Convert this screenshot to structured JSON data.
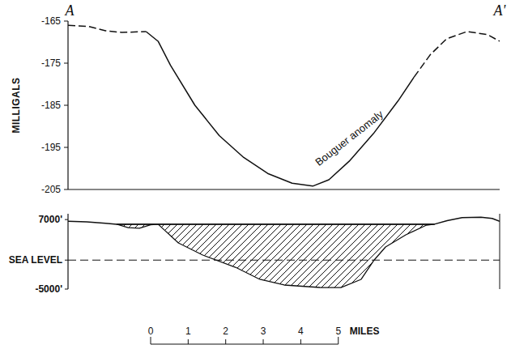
{
  "chart_data": [
    {
      "type": "line",
      "endpoints": [
        "A",
        "A'"
      ],
      "ylabel": "MILLIGALS",
      "xlim": [
        0,
        11.5
      ],
      "ylim": [
        -205,
        -165
      ],
      "yticks": [
        -165,
        -175,
        -185,
        -195,
        -205
      ],
      "annotations": [
        {
          "text": "Bouguer anomaly",
          "x": 7.55,
          "y": -193.5
        }
      ],
      "series": [
        {
          "line_style": "dashed",
          "x": [
            0,
            0.56,
            1.0,
            1.43,
            2.08
          ],
          "values": [
            -166,
            -166.3,
            -167.3,
            -167.7,
            -167.5
          ]
        },
        {
          "line_style": "solid",
          "x": [
            2.08,
            2.4,
            2.73,
            3.38,
            4.03,
            4.68,
            5.32,
            5.97,
            6.52,
            6.95,
            7.49,
            8.14,
            8.79,
            9.22
          ],
          "values": [
            -167.5,
            -169.8,
            -175.5,
            -185,
            -192.2,
            -197.4,
            -201.2,
            -203.5,
            -204.2,
            -202.7,
            -198.3,
            -191.7,
            -184,
            -178.3
          ]
        },
        {
          "line_style": "dashed",
          "x": [
            9.22,
            9.65,
            10.09,
            10.63,
            11.17,
            11.5
          ],
          "values": [
            -178.3,
            -173,
            -169.2,
            -167.5,
            -168.2,
            -169.8
          ]
        }
      ]
    },
    {
      "type": "cross_section",
      "xlim": [
        0,
        11.5
      ],
      "ylim": [
        -5000,
        8000
      ],
      "yticks": [
        {
          "value": 7000,
          "label": "7000'"
        },
        {
          "value": 0,
          "label": "SEA LEVEL"
        },
        {
          "value": -5000,
          "label": "-5000'"
        }
      ],
      "baseline": 0,
      "series": [
        {
          "type": "line",
          "x": [
            0,
            0.5,
            1.0,
            1.3,
            9.76,
            10.1,
            10.5,
            11.0,
            11.3,
            11.5
          ],
          "values": [
            6700,
            6600,
            6350,
            6200,
            6200,
            6800,
            7350,
            7400,
            7200,
            6700
          ]
        },
        {
          "type": "area",
          "x": [
            1.3,
            1.6,
            1.9,
            2.2,
            2.4,
            2.94,
            3.59,
            4.46,
            5.11,
            5.76,
            6.71,
            7.27,
            7.81,
            8.14,
            8.46,
            9.0,
            9.55,
            9.76
          ],
          "values": [
            6200,
            5600,
            5500,
            6100,
            6200,
            2970,
            870,
            -1230,
            -3320,
            -4300,
            -4720,
            -4750,
            -3320,
            -110,
            2270,
            4370,
            6040,
            6200
          ]
        }
      ],
      "scale_bar": {
        "ticks": [
          0,
          1,
          2,
          3,
          4,
          5
        ],
        "label": "MILES"
      }
    }
  ]
}
